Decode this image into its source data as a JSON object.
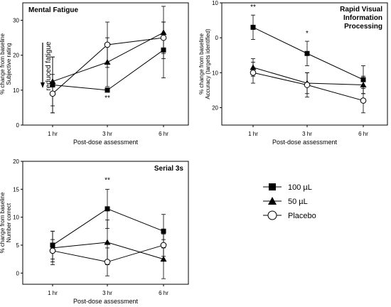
{
  "chart_data": [
    {
      "type": "line",
      "title": "Mental Fatigue",
      "categories": [
        "1 hr",
        "3 hr",
        "6 hr"
      ],
      "xlabel": "Post-dose assessment",
      "ylabel": [
        "% change from baseline",
        "Subjective rating"
      ],
      "ylim": [
        0,
        35
      ],
      "yticks": [
        0,
        10,
        20,
        30
      ],
      "annotation": "reduced fatigue",
      "series": [
        {
          "name": "100 µL",
          "values": [
            11.5,
            10,
            21.5
          ],
          "err": [
            8,
            0,
            8
          ]
        },
        {
          "name": "50 µL",
          "values": [
            12.5,
            18,
            26.5
          ],
          "err": [
            7,
            7,
            7.5
          ]
        },
        {
          "name": "Placebo",
          "values": [
            9,
            23,
            25
          ],
          "err": [
            5.5,
            6.5,
            4.5
          ]
        }
      ],
      "significance": [
        {
          "category": "3 hr",
          "label": "**",
          "position": "below"
        }
      ]
    },
    {
      "type": "line",
      "title": [
        "Rapid Visual",
        "Information",
        "Processing"
      ],
      "categories": [
        "1 hr",
        "3 hr",
        "6 hr"
      ],
      "xlabel": "Post-dose assessment",
      "ylabel": [
        "% change from baseline",
        "Accuracy (targets identified)"
      ],
      "ylim": [
        -25,
        10
      ],
      "yticks": [
        10,
        0,
        -10,
        -20
      ],
      "ytick_labels": [
        "10",
        "0",
        "10",
        "20"
      ],
      "series": [
        {
          "name": "100 µL",
          "values": [
            3,
            -4.5,
            -12
          ],
          "err": [
            3.5,
            3.5,
            4
          ]
        },
        {
          "name": "50 µL",
          "values": [
            -8.5,
            -13,
            -13.5
          ],
          "err": [
            2.5,
            3,
            2.5
          ]
        },
        {
          "name": "Placebo",
          "values": [
            -10,
            -13.5,
            -18
          ],
          "err": [
            3,
            3.5,
            3.5
          ]
        }
      ],
      "significance": [
        {
          "category": "1 hr",
          "label": "**",
          "position": "above"
        },
        {
          "category": "3 hr",
          "label": "*",
          "position": "above"
        }
      ]
    },
    {
      "type": "line",
      "title": "Serial 3s",
      "categories": [
        "1 hr",
        "3 hr",
        "6 hr"
      ],
      "xlabel": "Post-dose assessment",
      "ylabel": [
        "% change from baseline",
        "Number correct"
      ],
      "ylim": [
        -2,
        20
      ],
      "yticks": [
        0,
        5,
        10,
        15,
        20
      ],
      "series": [
        {
          "name": "100 µL",
          "values": [
            5,
            11.5,
            7.5
          ],
          "err": [
            2.5,
            3.5,
            3
          ]
        },
        {
          "name": "50 µL",
          "values": [
            4.5,
            5.5,
            2.5
          ],
          "err": [
            3,
            4,
            3.5
          ]
        },
        {
          "name": "Placebo",
          "values": [
            4,
            2,
            5
          ],
          "err": [
            2,
            2.5,
            2
          ]
        }
      ],
      "significance": [
        {
          "category": "3 hr",
          "label": "**",
          "position": "above"
        }
      ]
    }
  ],
  "legend": {
    "placement": "bottom-right",
    "items": [
      {
        "label": "100 µL",
        "marker": "square-filled"
      },
      {
        "label": "50 µL",
        "marker": "triangle-filled"
      },
      {
        "label": "Placebo",
        "marker": "circle-open"
      }
    ]
  }
}
